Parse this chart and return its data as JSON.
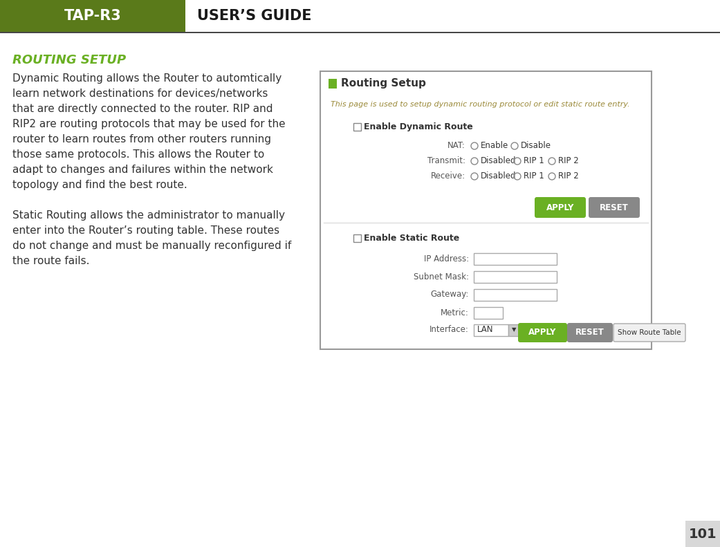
{
  "bg_color": "#ffffff",
  "header_green": "#5a7a1a",
  "header_text_left": "TAP-R3",
  "header_text_right": "USER’S GUIDE",
  "header_line_color": "#333333",
  "page_number": "101",
  "section_title": "ROUTING SETUP",
  "section_title_color": "#6ab023",
  "para1_lines": [
    "Dynamic Routing allows the Router to automtically",
    "learn network destinations for devices/networks",
    "that are directly connected to the router. RIP and",
    "RIP2 are routing protocols that may be used for the",
    "router to learn routes from other routers running",
    "those same protocols. This allows the Router to",
    "adapt to changes and failures within the network",
    "topology and find the best route."
  ],
  "para2_lines": [
    "Static Routing allows the administrator to manually",
    "enter into the Router’s routing table. These routes",
    "do not change and must be manually reconfigured if",
    "the route fails."
  ],
  "text_color": "#333333",
  "panel_border_color": "#999999",
  "panel_bg": "#ffffff",
  "panel_title": "Routing Setup",
  "panel_title_color": "#333333",
  "panel_green_sq": "#6ab023",
  "panel_subtitle": "This page is used to setup dynamic routing protocol or edit static route entry.",
  "panel_subtitle_color": "#9b8a3a",
  "apply_btn_color": "#6ab023",
  "reset_btn_color": "#888888",
  "show_route_btn_color": "#f0f0f0",
  "input_border": "#aaaaaa",
  "input_bg": "#ffffff",
  "checkbox_color": "#888888",
  "radio_color": "#888888",
  "label_color": "#555555",
  "radio_label_color": "#333333"
}
